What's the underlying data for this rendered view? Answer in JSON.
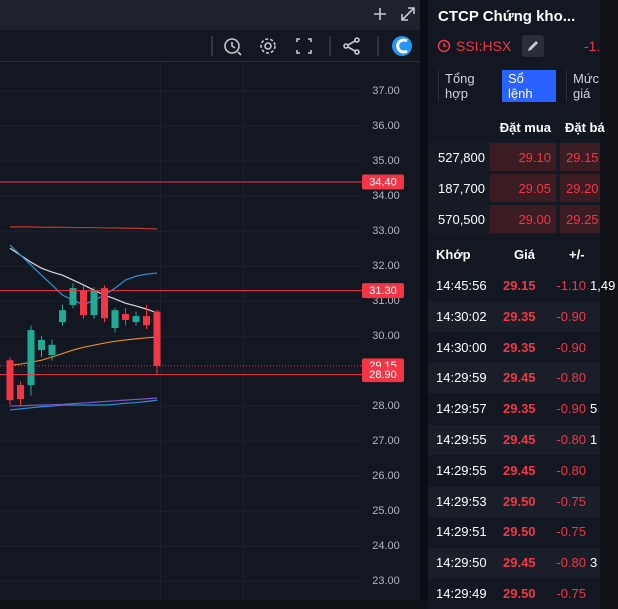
{
  "price_chart": {
    "type": "candlestick",
    "ylim": [
      22.46,
      37.83
    ],
    "yticks": [
      {
        "value": 37,
        "label": "37.00"
      },
      {
        "value": 36,
        "label": "36.00"
      },
      {
        "value": 35,
        "label": "35.00"
      },
      {
        "value": 34,
        "label": "34.00"
      },
      {
        "value": 33,
        "label": "33.00"
      },
      {
        "value": 32,
        "label": "32.00"
      },
      {
        "value": 31,
        "label": "31.00"
      },
      {
        "value": 30,
        "label": "30.00"
      },
      {
        "value": 29,
        "label": "29.00"
      },
      {
        "value": 28,
        "label": "28.00"
      },
      {
        "value": 27,
        "label": "27.00"
      },
      {
        "value": 26,
        "label": "26.00"
      },
      {
        "value": 25,
        "label": "25.00"
      },
      {
        "value": 24,
        "label": "24.00"
      },
      {
        "value": 23,
        "label": "23.00"
      }
    ],
    "grid": true,
    "up_color": "#22ab94",
    "down_color": "#f23645",
    "candles": [
      {
        "open": 29.31,
        "high": 29.4,
        "low": 28.03,
        "close": 28.17
      },
      {
        "open": 28.6,
        "high": 28.7,
        "low": 28.0,
        "close": 28.2
      },
      {
        "open": 28.6,
        "high": 30.3,
        "low": 28.3,
        "close": 30.17
      },
      {
        "open": 29.6,
        "high": 30.0,
        "low": 29.4,
        "close": 29.89
      },
      {
        "open": 29.46,
        "high": 29.9,
        "low": 29.3,
        "close": 29.75
      },
      {
        "open": 30.4,
        "high": 30.9,
        "low": 30.3,
        "close": 30.74
      },
      {
        "open": 30.89,
        "high": 31.51,
        "low": 30.8,
        "close": 31.37
      },
      {
        "open": 31.31,
        "high": 31.45,
        "low": 30.5,
        "close": 30.6
      },
      {
        "open": 30.6,
        "high": 31.4,
        "low": 30.5,
        "close": 31.31
      },
      {
        "open": 31.37,
        "high": 31.45,
        "low": 30.4,
        "close": 30.51
      },
      {
        "open": 30.23,
        "high": 30.8,
        "low": 30.1,
        "close": 30.74
      },
      {
        "open": 30.63,
        "high": 30.8,
        "low": 30.3,
        "close": 30.46
      },
      {
        "open": 30.4,
        "high": 30.7,
        "low": 30.3,
        "close": 30.57
      },
      {
        "open": 30.57,
        "high": 30.9,
        "low": 30.2,
        "close": 30.31
      },
      {
        "open": 30.7,
        "high": 30.75,
        "low": 28.9,
        "close": 29.15
      }
    ],
    "indicators": [
      {
        "color": "#d9d9d9",
        "values": [
          32.51,
          32.31,
          32.11,
          31.94,
          31.83,
          31.74,
          31.6,
          31.46,
          31.31,
          31.17,
          31.06,
          30.94,
          30.86,
          30.77,
          30.66
        ]
      },
      {
        "color": "#2f8fd8",
        "values": [
          32.6,
          32.31,
          32.03,
          31.74,
          31.46,
          31.17,
          31.03,
          30.89,
          31.03,
          31.17,
          31.37,
          31.6,
          31.71,
          31.77,
          31.8
        ]
      },
      {
        "color": "#2f8fd8",
        "values": [
          27.89,
          27.92,
          27.95,
          27.98,
          28.0,
          28.03,
          28.03,
          28.03,
          28.03,
          28.03,
          28.05,
          28.08,
          28.1,
          28.13,
          28.17
        ]
      },
      {
        "color": "#e08a2c",
        "values": [
          29.17,
          29.2,
          29.25,
          29.31,
          29.4,
          29.5,
          29.6,
          29.68,
          29.74,
          29.8,
          29.85,
          29.89,
          29.92,
          29.95,
          29.97
        ]
      },
      {
        "color": "#c0392b",
        "values": [
          33.12,
          33.12,
          33.12,
          33.11,
          33.11,
          33.11,
          33.1,
          33.1,
          33.1,
          33.09,
          33.09,
          33.08,
          33.08,
          33.07,
          33.06
        ]
      },
      {
        "color": "#7e57c2",
        "values": [
          28.0,
          28.01,
          28.02,
          28.03,
          28.04,
          28.05,
          28.07,
          28.09,
          28.11,
          28.13,
          28.15,
          28.17,
          28.19,
          28.21,
          28.23
        ]
      }
    ],
    "price_lines": [
      {
        "value": 34.4,
        "label": "34.40",
        "color": "#f23645",
        "dashed": false
      },
      {
        "value": 31.3,
        "label": "31.30",
        "color": "#f23645",
        "dashed": false
      },
      {
        "value": 29.15,
        "label": "29.15",
        "color": "#f23645",
        "dashed": true
      },
      {
        "value": 28.9,
        "label": "28.90",
        "color": "#f23645",
        "dashed": false
      }
    ]
  },
  "right_panel": {
    "title": "CTCP Chứng kho...",
    "symbol": "SSI:HSX",
    "change": "-1.",
    "tabs": [
      "Tổng hợp",
      "Sổ lệnh",
      "Mức giá"
    ],
    "active_tab": 1,
    "order_book": {
      "headers": [
        "Đặt mua",
        "Đặt bá"
      ],
      "rows": [
        [
          "527,800",
          "29.10",
          "29.15"
        ],
        [
          "187,700",
          "29.05",
          "29.20"
        ],
        [
          "570,500",
          "29.00",
          "29.25"
        ]
      ]
    },
    "matches": {
      "headers": [
        "Khớp",
        "Giá",
        "+/-"
      ],
      "rows": [
        [
          "14:45:56",
          "29.15",
          "-1.10",
          "1,49"
        ],
        [
          "14:30:02",
          "29.35",
          "-0.90"
        ],
        [
          "14:30:00",
          "29.35",
          "-0.90"
        ],
        [
          "14:29:59",
          "29.45",
          "-0.80"
        ],
        [
          "14:29:57",
          "29.35",
          "-0.90",
          "5"
        ],
        [
          "14:29:55",
          "29.45",
          "-0.80",
          "1"
        ],
        [
          "14:29:55",
          "29.45",
          "-0.80"
        ],
        [
          "14:29:53",
          "29.50",
          "-0.75"
        ],
        [
          "14:29:51",
          "29.50",
          "-0.75"
        ],
        [
          "14:29:50",
          "29.45",
          "-0.80",
          "3"
        ],
        [
          "14:29:49",
          "29.50",
          "-0.75"
        ]
      ]
    }
  }
}
